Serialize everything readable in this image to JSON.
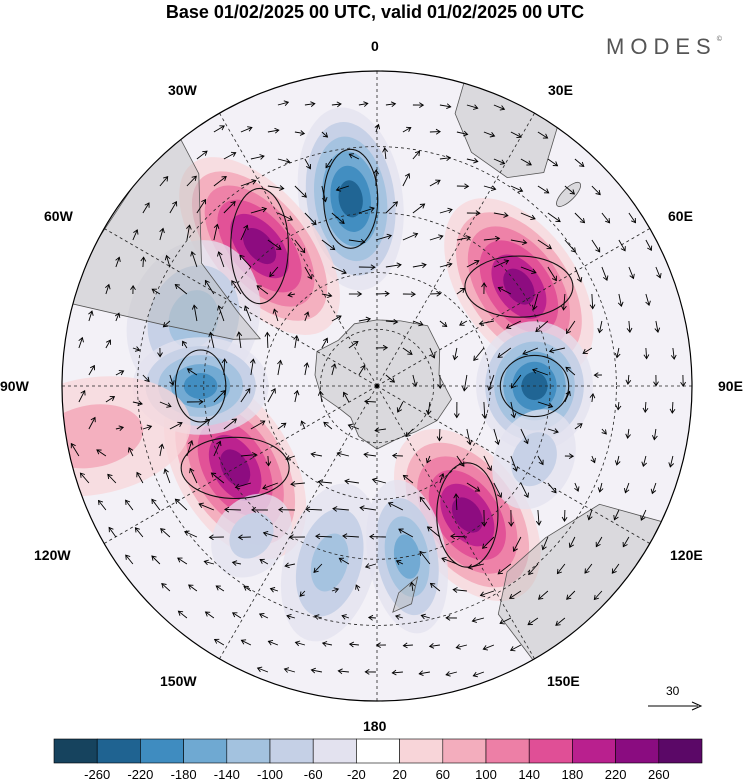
{
  "header": {
    "title": "Base 01/02/2025 00 UTC, valid 01/02/2025 00 UTC",
    "brand": "MODES",
    "brand_mark": "©"
  },
  "map": {
    "projection": "south-polar-stereographic",
    "longitude_labels": [
      "0",
      "30E",
      "60E",
      "90E",
      "120E",
      "150E",
      "180",
      "150W",
      "120W",
      "90W",
      "60W",
      "30W"
    ],
    "reference_vector_label": "30",
    "anomalies": [
      {
        "center_lon": -8,
        "value": -250
      },
      {
        "center_lon": -40,
        "value": 250
      },
      {
        "center_lon": -70,
        "value": -120
      },
      {
        "center_lon": 55,
        "value": 230
      },
      {
        "center_lon": 90,
        "value": -250
      },
      {
        "center_lon": 145,
        "value": 250
      },
      {
        "center_lon": 170,
        "value": -150
      },
      {
        "center_lon": -120,
        "value": 230
      },
      {
        "center_lon": -90,
        "value": -200
      },
      {
        "center_lon": -165,
        "value": -100
      },
      {
        "center_lon": -140,
        "value": -90
      },
      {
        "center_lon": 115,
        "value": -90
      },
      {
        "center_lon": -100,
        "value": 80
      }
    ]
  },
  "colorbar": {
    "ticks": [
      "-260",
      "-220",
      "-180",
      "-140",
      "-100",
      "-60",
      "-20",
      "20",
      "60",
      "100",
      "140",
      "180",
      "220",
      "260"
    ],
    "colors": [
      "#16435e",
      "#1f6391",
      "#3f8cc0",
      "#6fa9d2",
      "#a3c2df",
      "#c5d0e6",
      "#e3e2ef",
      "#ffffff",
      "#f8d5d9",
      "#f3adbd",
      "#ed7fa6",
      "#e04f96",
      "#b9208e",
      "#8a0c80",
      "#5b0867"
    ]
  }
}
